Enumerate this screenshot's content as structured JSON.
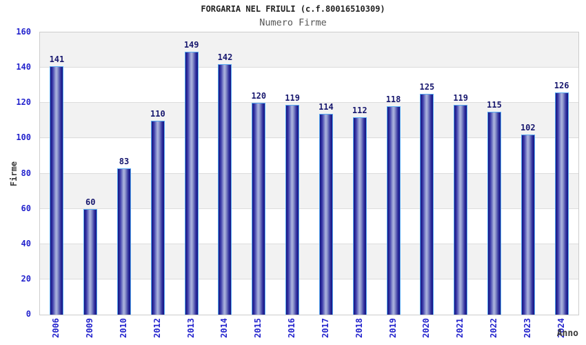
{
  "header": {
    "title": "FORGARIA NEL FRIULI (c.f.80016510309)",
    "subtitle": "Numero Firme"
  },
  "chart_data": {
    "type": "bar",
    "title": "FORGARIA NEL FRIULI (c.f.80016510309)",
    "subtitle": "Numero Firme",
    "xlabel": "Anno",
    "ylabel": "Firme",
    "categories": [
      "2006",
      "2009",
      "2010",
      "2012",
      "2013",
      "2014",
      "2015",
      "2016",
      "2017",
      "2018",
      "2019",
      "2020",
      "2021",
      "2022",
      "2023",
      "2024"
    ],
    "values": [
      141,
      60,
      83,
      110,
      149,
      142,
      120,
      119,
      114,
      112,
      118,
      125,
      119,
      115,
      102,
      126
    ],
    "ylim": [
      0,
      160
    ],
    "ytick_step": 20,
    "yticks": [
      0,
      20,
      40,
      60,
      80,
      100,
      120,
      140,
      160
    ],
    "grid": true,
    "legend": "none",
    "colors": {
      "page_bg": "#ffffff",
      "title": "#222222",
      "subtitle": "#555555",
      "tick": "#2323cd",
      "value": "#17176e",
      "axis_label": "#3a3a3a",
      "band": "#f2f2f2",
      "grid": "#dcdcdc",
      "frame": "#cccccc",
      "bar_dark": "#131380",
      "bar_light": "#aab2de",
      "bar_border": "#58aaf2"
    }
  }
}
